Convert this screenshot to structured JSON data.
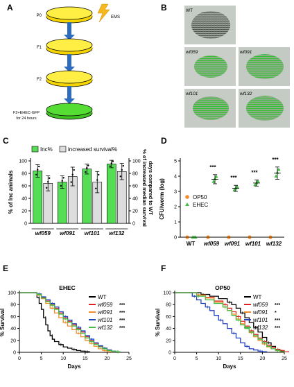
{
  "panels": {
    "A": {
      "letter": "A",
      "steps": [
        "P0",
        "F1",
        "F2",
        "F2+EHEC-GFP",
        "for 24 hours"
      ],
      "mutagen": "EMS",
      "colors": {
        "dish_yellow": "#ffee44",
        "dish_green": "#55dd33",
        "arrow": "#2e6cc0",
        "bolt": "#f5b81f"
      }
    },
    "B": {
      "letter": "B",
      "images": [
        {
          "label": "WT",
          "italic": false
        },
        {
          "label": "wf059",
          "italic": true
        },
        {
          "label": "wf091",
          "italic": true
        },
        {
          "label": "wf101",
          "italic": true
        },
        {
          "label": "wf132",
          "italic": true
        }
      ]
    },
    "C": {
      "letter": "C"
    },
    "D": {
      "letter": "D"
    },
    "E": {
      "letter": "E"
    },
    "F": {
      "letter": "F"
    }
  },
  "chart_data": [
    {
      "panel": "C",
      "type": "bar",
      "categories": [
        "wf059",
        "wf091",
        "wf101",
        "wf132"
      ],
      "series": [
        {
          "name": "Inc%",
          "values": [
            84,
            66,
            87,
            95
          ],
          "err": [
            10,
            10,
            8,
            6
          ],
          "color": "#55dd55"
        },
        {
          "name": "increased survival%",
          "values": [
            64,
            75,
            66,
            83
          ],
          "err": [
            12,
            15,
            17,
            13
          ],
          "color": "#dddddd"
        }
      ],
      "ylabel_left": "% of Inc animals",
      "ylabel_right": "% of increased median survival days compared to WT",
      "ylim": [
        0,
        100
      ],
      "yticks": [
        0,
        20,
        40,
        60,
        80,
        100
      ],
      "legend": "top"
    },
    {
      "panel": "D",
      "type": "scatter",
      "categories": [
        "WT",
        "wf059",
        "wf091",
        "wf101",
        "wf132"
      ],
      "series": [
        {
          "name": "OP50",
          "values": [
            0,
            0,
            0,
            0,
            0
          ],
          "color": "#f28c28"
        },
        {
          "name": "EHEC",
          "values": [
            0,
            3.8,
            3.2,
            3.55,
            4.2
          ],
          "err": [
            0,
            0.3,
            0.2,
            0.2,
            0.4
          ],
          "color": "#44bb44"
        }
      ],
      "significance": [
        "",
        "***",
        "***",
        "***",
        "***"
      ],
      "ylabel": "CFU/worm (log)",
      "ylim": [
        0,
        5
      ],
      "yticks": [
        0,
        1,
        2,
        3,
        4,
        5
      ],
      "legend": "left"
    },
    {
      "panel": "E",
      "type": "line",
      "title": "EHEC",
      "xlabel": "Days",
      "ylabel": "% Survival",
      "xlim": [
        0,
        25
      ],
      "ylim": [
        0,
        100
      ],
      "xticks": [
        0,
        5,
        10,
        15,
        20,
        25
      ],
      "yticks": [
        0,
        20,
        40,
        60,
        80,
        100
      ],
      "series": [
        {
          "name": "WT",
          "sig": "",
          "color": "#000000",
          "x": [
            0,
            3,
            4,
            4.5,
            5,
            5.5,
            6,
            6.5,
            7,
            7.5,
            8,
            9,
            10,
            11,
            12,
            13,
            14,
            15,
            16
          ],
          "y": [
            100,
            100,
            92,
            82,
            72,
            58,
            46,
            36,
            28,
            22,
            18,
            13,
            9,
            7,
            5,
            3,
            2,
            1,
            0
          ]
        },
        {
          "name": "wf059",
          "sig": "***",
          "color": "#e02020",
          "x": [
            0,
            3,
            4,
            5,
            6,
            7,
            8,
            9,
            10,
            11,
            12,
            13,
            14,
            15,
            16,
            17,
            18,
            19,
            20,
            21,
            22,
            23
          ],
          "y": [
            100,
            100,
            97,
            92,
            86,
            80,
            74,
            66,
            58,
            52,
            46,
            40,
            34,
            26,
            20,
            15,
            10,
            7,
            4,
            2,
            1,
            0
          ]
        },
        {
          "name": "wf091",
          "sig": "***",
          "color": "#f28c28",
          "x": [
            0,
            3,
            4,
            5,
            6,
            7,
            8,
            9,
            10,
            11,
            12,
            13,
            14,
            15,
            16,
            17,
            18,
            19,
            20,
            21
          ],
          "y": [
            100,
            100,
            96,
            90,
            82,
            74,
            66,
            58,
            50,
            44,
            38,
            32,
            26,
            20,
            15,
            10,
            6,
            3,
            1,
            0
          ]
        },
        {
          "name": "wf101",
          "sig": "***",
          "color": "#2040c0",
          "x": [
            0,
            3,
            4,
            5,
            6,
            7,
            8,
            9,
            10,
            11,
            12,
            13,
            14,
            15,
            16,
            17,
            18,
            19,
            20,
            21,
            22,
            23
          ],
          "y": [
            100,
            100,
            98,
            93,
            88,
            82,
            76,
            68,
            60,
            54,
            48,
            42,
            36,
            28,
            22,
            16,
            11,
            7,
            4,
            2,
            1,
            0
          ]
        },
        {
          "name": "wf132",
          "sig": "***",
          "color": "#44bb44",
          "x": [
            0,
            3,
            4,
            5,
            6,
            7,
            8,
            9,
            10,
            11,
            12,
            13,
            14,
            15,
            16,
            17,
            18,
            19,
            20,
            21,
            22,
            23
          ],
          "y": [
            100,
            100,
            97,
            91,
            85,
            79,
            72,
            64,
            56,
            50,
            44,
            38,
            32,
            24,
            18,
            13,
            9,
            6,
            3,
            2,
            1,
            0
          ]
        }
      ]
    },
    {
      "panel": "F",
      "type": "line",
      "title": "OP50",
      "xlabel": "Days",
      "ylabel": "% Survival",
      "xlim": [
        0,
        25
      ],
      "ylim": [
        0,
        100
      ],
      "xticks": [
        0,
        5,
        10,
        15,
        20,
        25
      ],
      "yticks": [
        0,
        20,
        40,
        60,
        80,
        100
      ],
      "series": [
        {
          "name": "WT",
          "sig": "",
          "color": "#000000",
          "x": [
            0,
            4,
            6,
            8,
            10,
            12,
            13,
            14,
            15,
            16,
            17,
            18,
            19,
            20,
            21,
            22,
            23,
            24,
            25
          ],
          "y": [
            100,
            100,
            97,
            94,
            90,
            84,
            80,
            74,
            66,
            58,
            50,
            42,
            34,
            25,
            16,
            10,
            5,
            2,
            0
          ]
        },
        {
          "name": "wf059",
          "sig": "***",
          "color": "#e02020",
          "x": [
            0,
            3,
            5,
            7,
            9,
            11,
            12,
            13,
            14,
            15,
            16,
            17,
            18,
            19,
            20,
            21,
            22,
            23,
            24,
            25,
            26
          ],
          "y": [
            100,
            100,
            96,
            92,
            86,
            80,
            74,
            68,
            60,
            52,
            44,
            36,
            30,
            24,
            18,
            12,
            8,
            5,
            3,
            1,
            0
          ]
        },
        {
          "name": "wf091",
          "sig": "*",
          "color": "#f28c28",
          "x": [
            0,
            3,
            5,
            7,
            9,
            11,
            12,
            13,
            14,
            15,
            16,
            17,
            18,
            19,
            20,
            21,
            22,
            23,
            24,
            25
          ],
          "y": [
            100,
            100,
            96,
            91,
            84,
            76,
            70,
            64,
            56,
            48,
            40,
            33,
            26,
            20,
            14,
            9,
            6,
            3,
            1,
            0
          ]
        },
        {
          "name": "wf101",
          "sig": "***",
          "color": "#2040c0",
          "x": [
            0,
            3,
            4,
            5,
            6,
            7,
            8,
            9,
            10,
            11,
            12,
            13,
            14,
            15,
            16,
            17,
            18,
            19,
            20,
            21
          ],
          "y": [
            100,
            100,
            94,
            88,
            82,
            76,
            70,
            62,
            54,
            48,
            40,
            32,
            24,
            16,
            10,
            6,
            4,
            2,
            1,
            0
          ]
        },
        {
          "name": "wf132",
          "sig": "***",
          "color": "#44bb44",
          "x": [
            0,
            3,
            5,
            7,
            9,
            11,
            12,
            13,
            14,
            15,
            16,
            17,
            18,
            19,
            20,
            21,
            22,
            23,
            24,
            25
          ],
          "y": [
            100,
            100,
            94,
            88,
            82,
            76,
            70,
            62,
            54,
            46,
            40,
            34,
            28,
            22,
            16,
            10,
            6,
            3,
            1,
            0
          ]
        }
      ]
    }
  ]
}
